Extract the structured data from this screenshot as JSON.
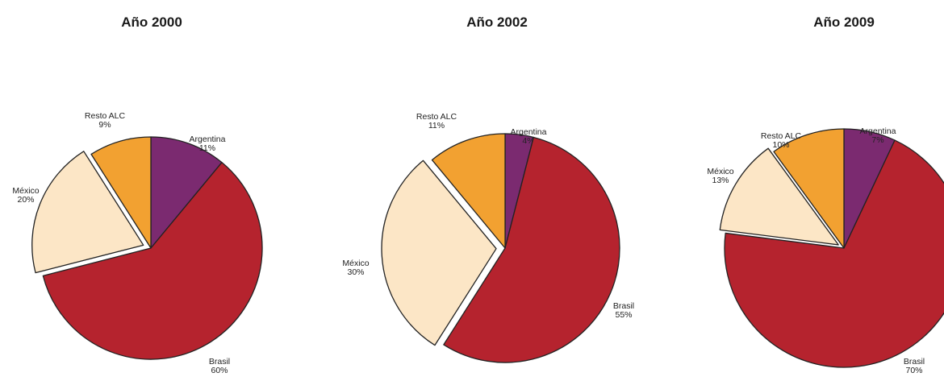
{
  "chart_data": [
    {
      "type": "pie",
      "title": "Año 2000",
      "slices": [
        {
          "label": "Argentina",
          "value": 11,
          "value_label": "11%",
          "color": "#7b2a70"
        },
        {
          "label": "Brasil",
          "value": 60,
          "value_label": "60%",
          "color": "#b5232e"
        },
        {
          "label": "México",
          "value": 20,
          "value_label": "20%",
          "color": "#fce6c6"
        },
        {
          "label": "Resto ALC",
          "value": 9,
          "value_label": "9%",
          "color": "#f2a131"
        }
      ]
    },
    {
      "type": "pie",
      "title": "Año 2002",
      "slices": [
        {
          "label": "Argentina",
          "value": 4,
          "value_label": "4%",
          "color": "#7b2a70"
        },
        {
          "label": "Brasil",
          "value": 55,
          "value_label": "55%",
          "color": "#b5232e"
        },
        {
          "label": "México",
          "value": 30,
          "value_label": "30%",
          "color": "#fce6c6"
        },
        {
          "label": "Resto ALC",
          "value": 11,
          "value_label": "11%",
          "color": "#f2a131"
        }
      ]
    },
    {
      "type": "pie",
      "title": "Año 2009",
      "slices": [
        {
          "label": "Argentina",
          "value": 7,
          "value_label": "7%",
          "color": "#7b2a70"
        },
        {
          "label": "Brasil",
          "value": 70,
          "value_label": "70%",
          "color": "#b5232e"
        },
        {
          "label": "México",
          "value": 13,
          "value_label": "13%",
          "color": "#fce6c6"
        },
        {
          "label": "Resto ALC",
          "value": 10,
          "value_label": "10%",
          "color": "#f2a131"
        }
      ]
    }
  ]
}
